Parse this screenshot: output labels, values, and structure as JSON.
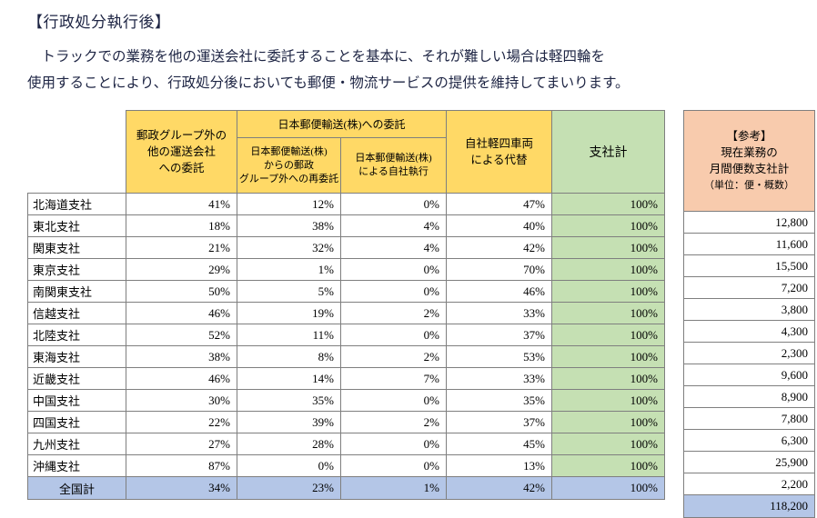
{
  "page": {
    "title": "【行政処分執行後】",
    "paragraph": "　トラックでの業務を他の運送会社に委託することを基本に、それが難しい場合は軽四輪を\n使用することにより、行政処分後においても郵便・物流サービスの提供を維持してまいります。"
  },
  "colors": {
    "header_yellow": "#ffd966",
    "branch_total_green": "#c5e0b3",
    "reference_salmon": "#f8cbad",
    "total_row_blue": "#b4c6e7",
    "border_gray": "#7f7f7f"
  },
  "table": {
    "headers": {
      "col_outside": "郵政グループ外の\n他の運送会社\nへの委託",
      "group_jpt": "日本郵便輸送(株)への委託",
      "col_recommission": "日本郵便輸送(株)\nからの郵政\nグループ外への再委託",
      "col_self_exec": "日本郵便輸送(株)\nによる自社執行",
      "col_light_vehicle": "自社軽四車両\nによる代替",
      "col_branch_total": "支社計"
    },
    "reference_header": "【参考】\n現在業務の\n月間便数支社計",
    "reference_unit": "（単位：便・概数）",
    "rows": [
      {
        "label": "北海道支社",
        "outside": "41%",
        "recommission": "12%",
        "self_exec": "0%",
        "light": "47%",
        "total": "100%",
        "reference": "12,800"
      },
      {
        "label": "東北支社",
        "outside": "18%",
        "recommission": "38%",
        "self_exec": "4%",
        "light": "40%",
        "total": "100%",
        "reference": "11,600"
      },
      {
        "label": "関東支社",
        "outside": "21%",
        "recommission": "32%",
        "self_exec": "4%",
        "light": "42%",
        "total": "100%",
        "reference": "15,500"
      },
      {
        "label": "東京支社",
        "outside": "29%",
        "recommission": "1%",
        "self_exec": "0%",
        "light": "70%",
        "total": "100%",
        "reference": "7,200"
      },
      {
        "label": "南関東支社",
        "outside": "50%",
        "recommission": "5%",
        "self_exec": "0%",
        "light": "46%",
        "total": "100%",
        "reference": "3,800"
      },
      {
        "label": "信越支社",
        "outside": "46%",
        "recommission": "19%",
        "self_exec": "2%",
        "light": "33%",
        "total": "100%",
        "reference": "4,300"
      },
      {
        "label": "北陸支社",
        "outside": "52%",
        "recommission": "11%",
        "self_exec": "0%",
        "light": "37%",
        "total": "100%",
        "reference": "2,300"
      },
      {
        "label": "東海支社",
        "outside": "38%",
        "recommission": "8%",
        "self_exec": "2%",
        "light": "53%",
        "total": "100%",
        "reference": "9,600"
      },
      {
        "label": "近畿支社",
        "outside": "46%",
        "recommission": "14%",
        "self_exec": "7%",
        "light": "33%",
        "total": "100%",
        "reference": "8,900"
      },
      {
        "label": "中国支社",
        "outside": "30%",
        "recommission": "35%",
        "self_exec": "0%",
        "light": "35%",
        "total": "100%",
        "reference": "7,800"
      },
      {
        "label": "四国支社",
        "outside": "22%",
        "recommission": "39%",
        "self_exec": "2%",
        "light": "37%",
        "total": "100%",
        "reference": "6,300"
      },
      {
        "label": "九州支社",
        "outside": "27%",
        "recommission": "28%",
        "self_exec": "0%",
        "light": "45%",
        "total": "100%",
        "reference": "25,900"
      },
      {
        "label": "沖縄支社",
        "outside": "87%",
        "recommission": "0%",
        "self_exec": "0%",
        "light": "13%",
        "total": "100%",
        "reference": "2,200"
      }
    ],
    "total_row": {
      "label": "全国計",
      "outside": "34%",
      "recommission": "23%",
      "self_exec": "1%",
      "light": "42%",
      "total": "100%",
      "reference": "118,200"
    }
  }
}
